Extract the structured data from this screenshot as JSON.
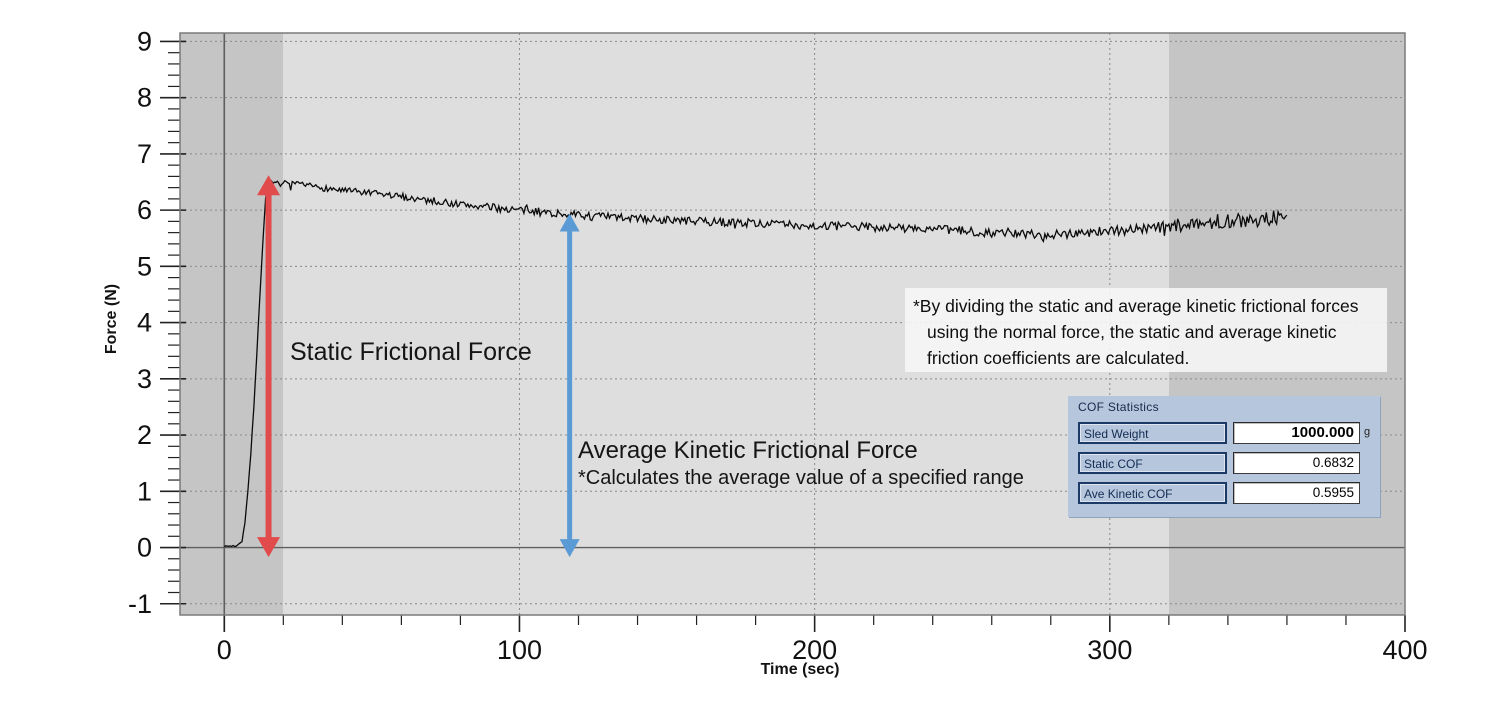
{
  "chart_data": {
    "type": "line",
    "title": "",
    "xlabel": "Time (sec)",
    "ylabel": "Force (N)",
    "xlim": [
      -15,
      400
    ],
    "ylim": [
      -1.2,
      9.15
    ],
    "x_major_ticks": [
      0,
      100,
      200,
      300,
      400
    ],
    "x_minor_step": 20,
    "y_major_ticks": [
      -1,
      0,
      1,
      2,
      3,
      4,
      5,
      6,
      7,
      8,
      9
    ],
    "y_minor_step": 0.2,
    "grid": "dotted",
    "legend": "none",
    "background_bands": [
      {
        "from": -15,
        "to": 20,
        "color": "#c5c5c5"
      },
      {
        "from": 20,
        "to": 320,
        "color": "#dedede"
      },
      {
        "from": 320,
        "to": 400,
        "color": "#c5c5c5"
      }
    ],
    "series": [
      {
        "name": "friction-force-trace",
        "color": "#0b0b0b",
        "t_start": 0,
        "t_end": 360,
        "dt": 0.5,
        "seed": 7,
        "trend": [
          [
            0,
            0.02
          ],
          [
            4,
            0.03
          ],
          [
            6,
            0.12
          ],
          [
            7,
            0.45
          ],
          [
            8,
            1.0
          ],
          [
            9,
            1.7
          ],
          [
            10,
            2.5
          ],
          [
            11,
            3.4
          ],
          [
            12,
            4.4
          ],
          [
            13,
            5.4
          ],
          [
            14,
            6.2
          ],
          [
            14.8,
            6.55
          ],
          [
            15.5,
            6.5
          ],
          [
            17,
            6.46
          ],
          [
            20,
            6.48
          ],
          [
            30,
            6.42
          ],
          [
            40,
            6.35
          ],
          [
            60,
            6.24
          ],
          [
            80,
            6.1
          ],
          [
            100,
            6.0
          ],
          [
            117,
            5.92
          ],
          [
            140,
            5.85
          ],
          [
            160,
            5.8
          ],
          [
            180,
            5.77
          ],
          [
            200,
            5.72
          ],
          [
            220,
            5.7
          ],
          [
            240,
            5.66
          ],
          [
            260,
            5.6
          ],
          [
            275,
            5.56
          ],
          [
            290,
            5.6
          ],
          [
            305,
            5.65
          ],
          [
            320,
            5.7
          ],
          [
            335,
            5.78
          ],
          [
            350,
            5.84
          ],
          [
            360,
            5.88
          ]
        ],
        "noise_amp": [
          [
            0,
            0.01
          ],
          [
            6,
            0.02
          ],
          [
            13,
            0.03
          ],
          [
            18,
            0.05
          ],
          [
            40,
            0.06
          ],
          [
            100,
            0.07
          ],
          [
            200,
            0.075
          ],
          [
            280,
            0.085
          ],
          [
            320,
            0.1
          ],
          [
            345,
            0.13
          ],
          [
            360,
            0.14
          ]
        ]
      }
    ],
    "annotations": {
      "static_arrow": {
        "t": 15,
        "f_bottom": -0.17,
        "f_top": 6.62,
        "color": "#e14b4b",
        "label": "Static Frictional Force"
      },
      "kinetic_arrow": {
        "t": 117,
        "f_bottom": -0.17,
        "f_top": 5.94,
        "color": "#5b9bd5",
        "label": "Average Kinetic Frictional Force",
        "sublabel": "*Calculates the average value of a specified range"
      }
    }
  },
  "note_box": {
    "lines": [
      "*By dividing the static and average kinetic frictional forces",
      "using the normal force, the static and average kinetic",
      "friction coefficients are calculated."
    ]
  },
  "cof_panel": {
    "title": "COF Statistics",
    "rows": [
      {
        "label": "Sled Weight",
        "value": "1000.000",
        "unit": "g"
      },
      {
        "label": "Static COF",
        "value": "0.6832",
        "unit": ""
      },
      {
        "label": "Ave Kinetic COF",
        "value": "0.5955",
        "unit": ""
      }
    ]
  }
}
